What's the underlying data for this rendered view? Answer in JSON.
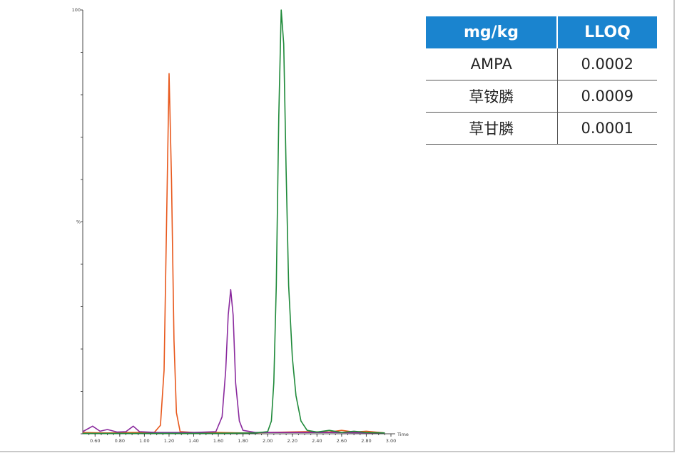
{
  "chart_data": {
    "type": "line",
    "xlabel": "Time",
    "x_ticks": [
      "0.60",
      "0.80",
      "1.00",
      "1.20",
      "1.40",
      "1.60",
      "1.80",
      "2.00",
      "2.20",
      "2.40",
      "2.60",
      "2.80",
      "3.00"
    ],
    "y_tick_labels": [
      "100",
      "%"
    ],
    "xlim": [
      0.5,
      3.0
    ],
    "ylim": [
      0,
      100
    ],
    "series": [
      {
        "color": "#e8581c",
        "points": [
          [
            0.5,
            0.3
          ],
          [
            0.7,
            0.2
          ],
          [
            0.9,
            0.3
          ],
          [
            1.08,
            0.3
          ],
          [
            1.13,
            2
          ],
          [
            1.16,
            15
          ],
          [
            1.18,
            50
          ],
          [
            1.2,
            85
          ],
          [
            1.22,
            60
          ],
          [
            1.24,
            22
          ],
          [
            1.26,
            5
          ],
          [
            1.29,
            0.5
          ],
          [
            1.4,
            0.3
          ],
          [
            1.6,
            0.3
          ],
          [
            1.8,
            0.2
          ],
          [
            2.0,
            0.3
          ],
          [
            2.3,
            0.5
          ],
          [
            2.5,
            0.4
          ],
          [
            2.6,
            0.8
          ],
          [
            2.7,
            0.4
          ],
          [
            2.8,
            0.6
          ],
          [
            2.95,
            0.2
          ]
        ]
      },
      {
        "color": "#8a2a9e",
        "points": [
          [
            0.5,
            0.5
          ],
          [
            0.58,
            1.8
          ],
          [
            0.64,
            0.6
          ],
          [
            0.7,
            1
          ],
          [
            0.78,
            0.4
          ],
          [
            0.85,
            0.5
          ],
          [
            0.91,
            1.8
          ],
          [
            0.96,
            0.5
          ],
          [
            1.1,
            0.3
          ],
          [
            1.4,
            0.3
          ],
          [
            1.58,
            0.5
          ],
          [
            1.63,
            4
          ],
          [
            1.66,
            15
          ],
          [
            1.68,
            28
          ],
          [
            1.7,
            34
          ],
          [
            1.72,
            28
          ],
          [
            1.74,
            12
          ],
          [
            1.77,
            3
          ],
          [
            1.8,
            0.8
          ],
          [
            1.9,
            0.3
          ],
          [
            2.2,
            0.3
          ],
          [
            2.5,
            0.3
          ],
          [
            2.95,
            0.2
          ]
        ]
      },
      {
        "color": "#1f8a3a",
        "points": [
          [
            0.5,
            0.1
          ],
          [
            1.0,
            0.1
          ],
          [
            1.5,
            0.1
          ],
          [
            1.9,
            0.2
          ],
          [
            2.0,
            0.5
          ],
          [
            2.03,
            3
          ],
          [
            2.05,
            12
          ],
          [
            2.07,
            35
          ],
          [
            2.09,
            75
          ],
          [
            2.11,
            100
          ],
          [
            2.13,
            92
          ],
          [
            2.15,
            62
          ],
          [
            2.17,
            35
          ],
          [
            2.2,
            18
          ],
          [
            2.23,
            9
          ],
          [
            2.27,
            3
          ],
          [
            2.32,
            0.8
          ],
          [
            2.4,
            0.4
          ],
          [
            2.5,
            0.8
          ],
          [
            2.6,
            0.3
          ],
          [
            2.7,
            0.6
          ],
          [
            2.8,
            0.3
          ],
          [
            2.95,
            0.2
          ]
        ]
      }
    ]
  },
  "lloq_table": {
    "headers": [
      "mg/kg",
      "LLOQ"
    ],
    "rows": [
      {
        "compound": "AMPA",
        "value": "0.0002"
      },
      {
        "compound": "草铵膦",
        "value": "0.0009"
      },
      {
        "compound": "草甘膦",
        "value": "0.0001"
      }
    ]
  }
}
